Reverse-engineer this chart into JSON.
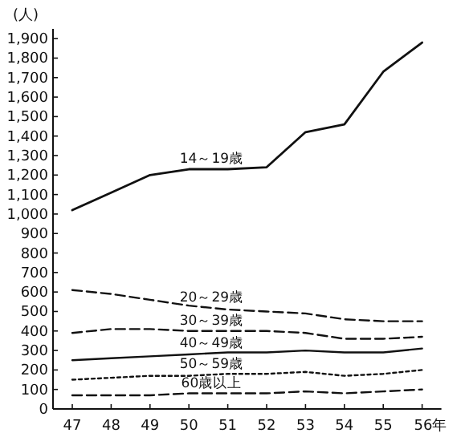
{
  "chart_data": {
    "type": "line",
    "ylabel": "(人)",
    "categories": [
      "47",
      "48",
      "49",
      "50",
      "51",
      "52",
      "53",
      "54",
      "55",
      "56年"
    ],
    "ylim": [
      0,
      1950
    ],
    "yticks": [
      0,
      100,
      200,
      300,
      400,
      500,
      600,
      700,
      800,
      900,
      {
        "value": 1000,
        "label": "1,000"
      },
      {
        "value": 1100,
        "label": "1,100"
      },
      {
        "value": 1200,
        "label": "1,200"
      },
      {
        "value": 1300,
        "label": "1,300"
      },
      {
        "value": 1400,
        "label": "1,400"
      },
      {
        "value": 1500,
        "label": "1,500"
      },
      {
        "value": 1600,
        "label": "1,600"
      },
      {
        "value": 1700,
        "label": "1,700"
      },
      {
        "value": 1800,
        "label": "1,800"
      },
      {
        "value": 1900,
        "label": "1,900"
      }
    ],
    "grid": false,
    "legend": false,
    "marker": "none",
    "series": [
      {
        "name": "14～19歳",
        "color": "#111111",
        "line_style": "solid",
        "values": [
          1020,
          1110,
          1200,
          1230,
          1230,
          1240,
          1420,
          1460,
          1730,
          1880
        ]
      },
      {
        "name": "20～29歳",
        "color": "#111111",
        "line_style": "dashed",
        "values": [
          610,
          590,
          560,
          530,
          510,
          500,
          490,
          460,
          450,
          450
        ]
      },
      {
        "name": "30～39歳",
        "color": "#111111",
        "line_style": "dashed",
        "values": [
          390,
          410,
          410,
          400,
          400,
          400,
          390,
          360,
          360,
          370
        ]
      },
      {
        "name": "40～49歳",
        "color": "#111111",
        "line_style": "solid",
        "values": [
          250,
          260,
          270,
          280,
          290,
          290,
          300,
          290,
          290,
          310
        ]
      },
      {
        "name": "50～59歳",
        "color": "#111111",
        "line_style": "dotted",
        "values": [
          150,
          160,
          170,
          170,
          180,
          180,
          190,
          170,
          180,
          200
        ]
      },
      {
        "name": "60歳以上",
        "color": "#111111",
        "line_style": "dashed",
        "values": [
          70,
          70,
          70,
          80,
          80,
          80,
          90,
          80,
          90,
          100
        ]
      }
    ]
  }
}
